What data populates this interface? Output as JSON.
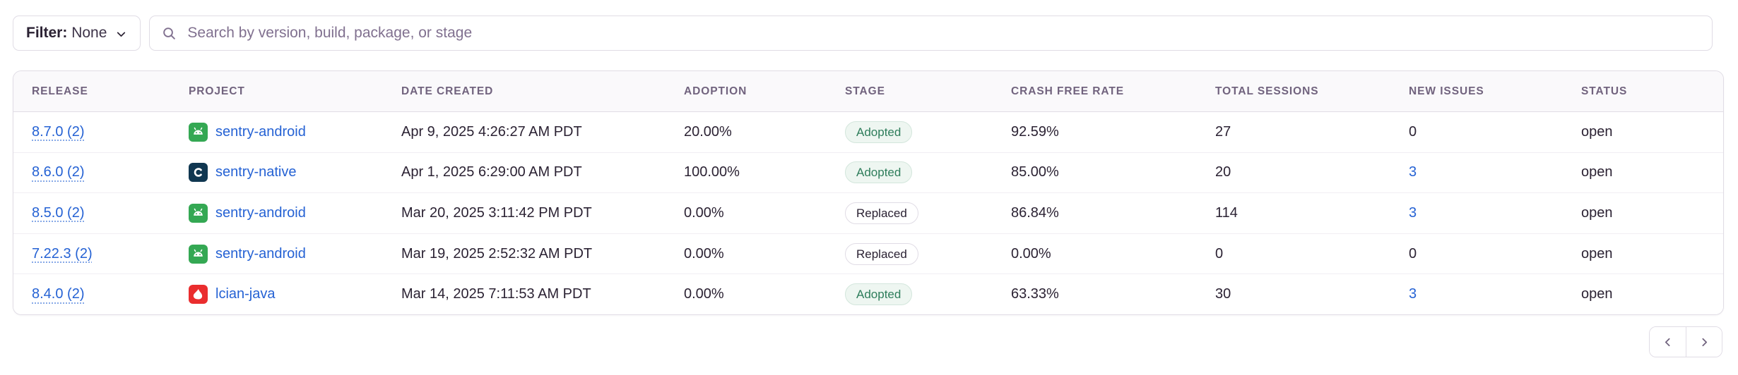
{
  "filter": {
    "label": "Filter:",
    "value": "None"
  },
  "search": {
    "placeholder": "Search by version, build, package, or stage"
  },
  "table": {
    "columns": [
      "Release",
      "Project",
      "Date Created",
      "Adoption",
      "Stage",
      "Crash Free Rate",
      "Total Sessions",
      "New Issues",
      "Status"
    ],
    "rows": [
      {
        "release": "8.7.0 (2)",
        "project": "sentry-android",
        "platform": "android",
        "date_created": "Apr 9, 2025 4:26:27 AM PDT",
        "adoption": "20.00%",
        "stage": "Adopted",
        "stage_variant": "adopted",
        "crash_free_rate": "92.59%",
        "total_sessions": "27",
        "new_issues": "0",
        "new_issues_link": false,
        "status": "open"
      },
      {
        "release": "8.6.0 (2)",
        "project": "sentry-native",
        "platform": "native",
        "date_created": "Apr 1, 2025 6:29:00 AM PDT",
        "adoption": "100.00%",
        "stage": "Adopted",
        "stage_variant": "adopted",
        "crash_free_rate": "85.00%",
        "total_sessions": "20",
        "new_issues": "3",
        "new_issues_link": true,
        "status": "open"
      },
      {
        "release": "8.5.0 (2)",
        "project": "sentry-android",
        "platform": "android",
        "date_created": "Mar 20, 2025 3:11:42 PM PDT",
        "adoption": "0.00%",
        "stage": "Replaced",
        "stage_variant": "replaced",
        "crash_free_rate": "86.84%",
        "total_sessions": "114",
        "new_issues": "3",
        "new_issues_link": true,
        "status": "open"
      },
      {
        "release": "7.22.3 (2)",
        "project": "sentry-android",
        "platform": "android",
        "date_created": "Mar 19, 2025 2:52:32 AM PDT",
        "adoption": "0.00%",
        "stage": "Replaced",
        "stage_variant": "replaced",
        "crash_free_rate": "0.00%",
        "total_sessions": "0",
        "new_issues": "0",
        "new_issues_link": false,
        "status": "open"
      },
      {
        "release": "8.4.0 (2)",
        "project": "lcian-java",
        "platform": "java",
        "date_created": "Mar 14, 2025 7:11:53 AM PDT",
        "adoption": "0.00%",
        "stage": "Adopted",
        "stage_variant": "adopted",
        "crash_free_rate": "63.33%",
        "total_sessions": "30",
        "new_issues": "3",
        "new_issues_link": true,
        "status": "open"
      }
    ]
  },
  "pagination": {
    "prev_icon": "chevron-left",
    "next_icon": "chevron-right"
  },
  "icons": {
    "search": "magnifier",
    "filter_caret": "chevron-down",
    "platform_android": "android-robot",
    "platform_native": "c-language",
    "platform_java": "java-duke"
  },
  "colors": {
    "link": "#2562d4",
    "text": "#2b2233",
    "header_text": "#71637e",
    "border": "#e0dce5",
    "header_bg": "#faf9fb",
    "adopted_text": "#2e7d5b",
    "adopted_bg": "#eef6f1",
    "android": "#34a853",
    "native": "#103751",
    "java": "#ea2d2e"
  }
}
